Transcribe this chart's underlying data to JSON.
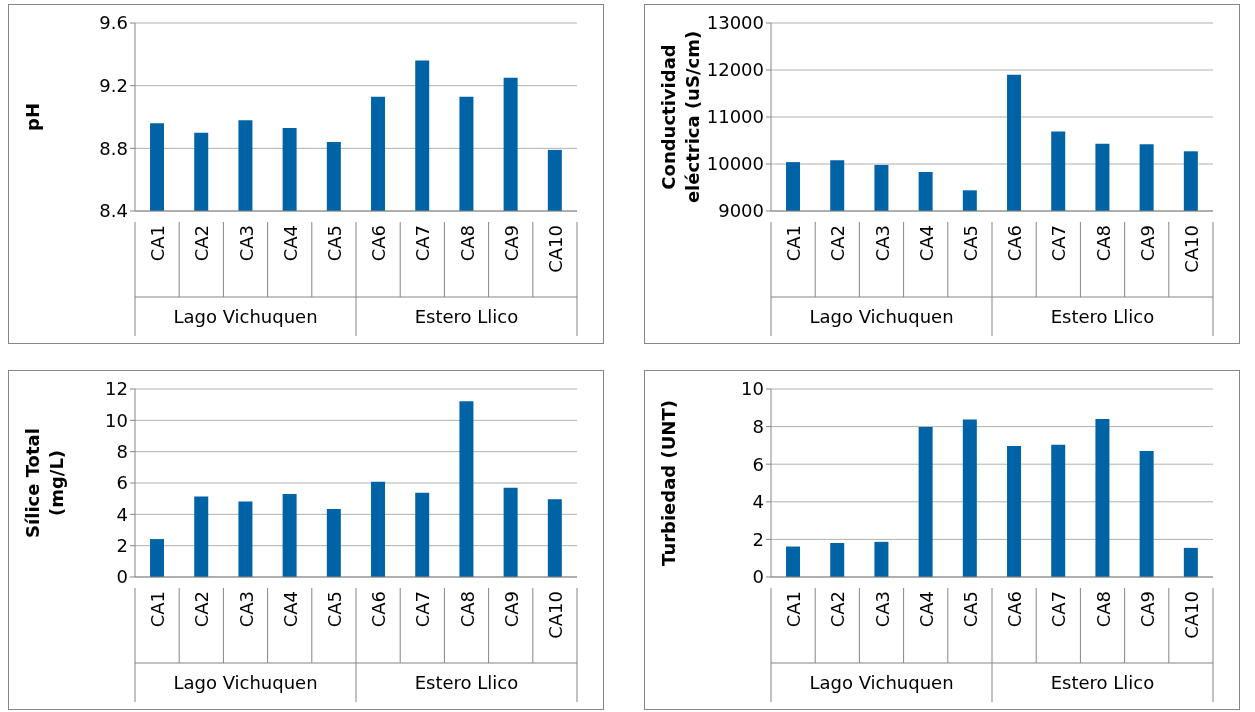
{
  "chart_data": [
    {
      "type": "bar",
      "ylabel": "pH",
      "categories": [
        "CA1",
        "CA2",
        "CA3",
        "CA4",
        "CA5",
        "CA6",
        "CA7",
        "CA8",
        "CA9",
        "CA10"
      ],
      "values": [
        8.96,
        8.9,
        8.98,
        8.93,
        8.84,
        9.13,
        9.36,
        9.13,
        9.25,
        8.79
      ],
      "color": "#0063a6",
      "ylim": [
        8.4,
        9.6
      ],
      "yticks": [
        8.4,
        8.8,
        9.2,
        9.6
      ],
      "grid": "y",
      "annotations": [
        "Lago Vichuquen",
        "Estero Llico"
      ]
    },
    {
      "type": "bar",
      "ylabel": "Conductividad eléctrica (uS/cm)",
      "categories": [
        "CA1",
        "CA2",
        "CA3",
        "CA4",
        "CA5",
        "CA6",
        "CA7",
        "CA8",
        "CA9",
        "CA10"
      ],
      "values": [
        10040,
        10080,
        9980,
        9830,
        9440,
        11900,
        10690,
        10430,
        10420,
        10270
      ],
      "color": "#0063a6",
      "ylim": [
        9000,
        13000
      ],
      "yticks": [
        9000,
        10000,
        11000,
        12000,
        13000
      ],
      "grid": "y",
      "annotations": [
        "Lago Vichuquen",
        "Estero Llico"
      ]
    },
    {
      "type": "bar",
      "ylabel": "Sílice Total (mg/L)",
      "categories": [
        "CA1",
        "CA2",
        "CA3",
        "CA4",
        "CA5",
        "CA6",
        "CA7",
        "CA8",
        "CA9",
        "CA10"
      ],
      "values": [
        2.42,
        5.14,
        4.82,
        5.3,
        4.34,
        6.08,
        5.38,
        11.22,
        5.7,
        4.97
      ],
      "color": "#0063a6",
      "ylim": [
        0,
        12
      ],
      "yticks": [
        0,
        2,
        4,
        6,
        8,
        10,
        12
      ],
      "grid": "y",
      "annotations": [
        "Lago Vichuquen",
        "Estero Llico"
      ]
    },
    {
      "type": "bar",
      "ylabel": "Turbiedad (UNT)",
      "categories": [
        "CA1",
        "CA2",
        "CA3",
        "CA4",
        "CA5",
        "CA6",
        "CA7",
        "CA8",
        "CA9",
        "CA10"
      ],
      "values": [
        1.62,
        1.81,
        1.87,
        7.98,
        8.38,
        6.97,
        7.04,
        8.4,
        6.7,
        1.55
      ],
      "color": "#0063a6",
      "ylim": [
        0,
        10
      ],
      "yticks": [
        0,
        2,
        4,
        6,
        8,
        10
      ],
      "grid": "y",
      "annotations": [
        "Lago Vichuquen",
        "Estero Llico"
      ]
    }
  ]
}
